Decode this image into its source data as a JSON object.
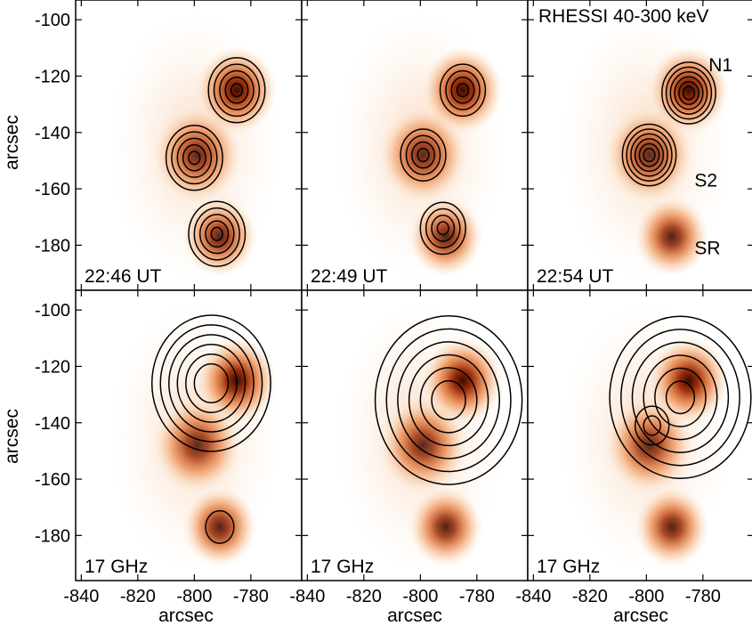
{
  "chart_data": {
    "type": "heatmap",
    "layout": {
      "rows": 2,
      "cols": 3
    },
    "xlabel": "arcsec",
    "ylabel": "arcsec",
    "xlim": [
      -842,
      -762
    ],
    "ylim": [
      -196,
      -93
    ],
    "xticks": [
      -840,
      -820,
      -800,
      -780
    ],
    "yticks": [
      -100,
      -120,
      -140,
      -160,
      -180
    ],
    "background_sources": [
      {
        "name": "N1",
        "x": -785,
        "y": -125,
        "peak": 1.0,
        "sigma": 6
      },
      {
        "name": "S2",
        "x": -799,
        "y": -148,
        "peak": 0.85,
        "sigma": 6.5
      },
      {
        "name": "SR",
        "x": -791,
        "y": -177,
        "peak": 0.9,
        "sigma": 5.5
      }
    ],
    "source_labels": [
      {
        "text": "N1",
        "x": -778,
        "y": -116
      },
      {
        "text": "S2",
        "x": -783,
        "y": -157
      },
      {
        "text": "SR",
        "x": -783,
        "y": -181
      }
    ],
    "panels": [
      {
        "row": 0,
        "col": 0,
        "time_label": "22:46 UT",
        "overlay": "HXR contours",
        "contours": [
          {
            "x": -785,
            "y": -125,
            "radii": [
              2,
              4,
              6,
              8,
              10
            ]
          },
          {
            "x": -800,
            "y": -149,
            "radii": [
              2,
              4,
              6,
              8,
              10
            ]
          },
          {
            "x": -792,
            "y": -176,
            "radii": [
              2,
              4,
              6,
              8,
              10
            ]
          }
        ]
      },
      {
        "row": 0,
        "col": 1,
        "time_label": "22:49 UT",
        "overlay": "HXR contours",
        "contours": [
          {
            "x": -785,
            "y": -125,
            "radii": [
              2,
              4,
              6,
              8
            ]
          },
          {
            "x": -799,
            "y": -148,
            "radii": [
              2,
              4,
              6,
              8
            ]
          },
          {
            "x": -792,
            "y": -174,
            "radii": [
              2,
              4,
              6,
              8
            ]
          }
        ]
      },
      {
        "row": 0,
        "col": 2,
        "time_label": "22:54 UT",
        "overlay": "RHESSI 40-300 keV",
        "title": "RHESSI 40-300 keV",
        "contours": [
          {
            "x": -785,
            "y": -126,
            "radii": [
              2,
              3.5,
              5,
              6.5,
              8,
              9.5
            ]
          },
          {
            "x": -799,
            "y": -148,
            "radii": [
              2,
              3.5,
              5,
              6.5,
              8,
              9.5
            ]
          }
        ]
      },
      {
        "row": 1,
        "col": 0,
        "time_label": "17 GHz",
        "overlay": "17 GHz contours",
        "contours": [
          {
            "x": -794,
            "y": -126,
            "radii": [
              6,
              9,
              12,
              15,
              18,
              21
            ]
          },
          {
            "x": -791,
            "y": -177,
            "radii": [
              5
            ]
          }
        ]
      },
      {
        "row": 1,
        "col": 1,
        "time_label": "17 GHz",
        "overlay": "17 GHz contours",
        "contours": [
          {
            "x": -790,
            "y": -132,
            "radii": [
              6,
              10,
              14,
              18,
              22,
              26
            ]
          }
        ]
      },
      {
        "row": 1,
        "col": 2,
        "time_label": "17 GHz",
        "overlay": "17 GHz contours",
        "contours": [
          {
            "x": -788,
            "y": -131,
            "radii": [
              5,
              9,
              13,
              17,
              21,
              25
            ]
          },
          {
            "x": -798,
            "y": -141,
            "radii": [
              3,
              6
            ]
          }
        ]
      }
    ]
  }
}
